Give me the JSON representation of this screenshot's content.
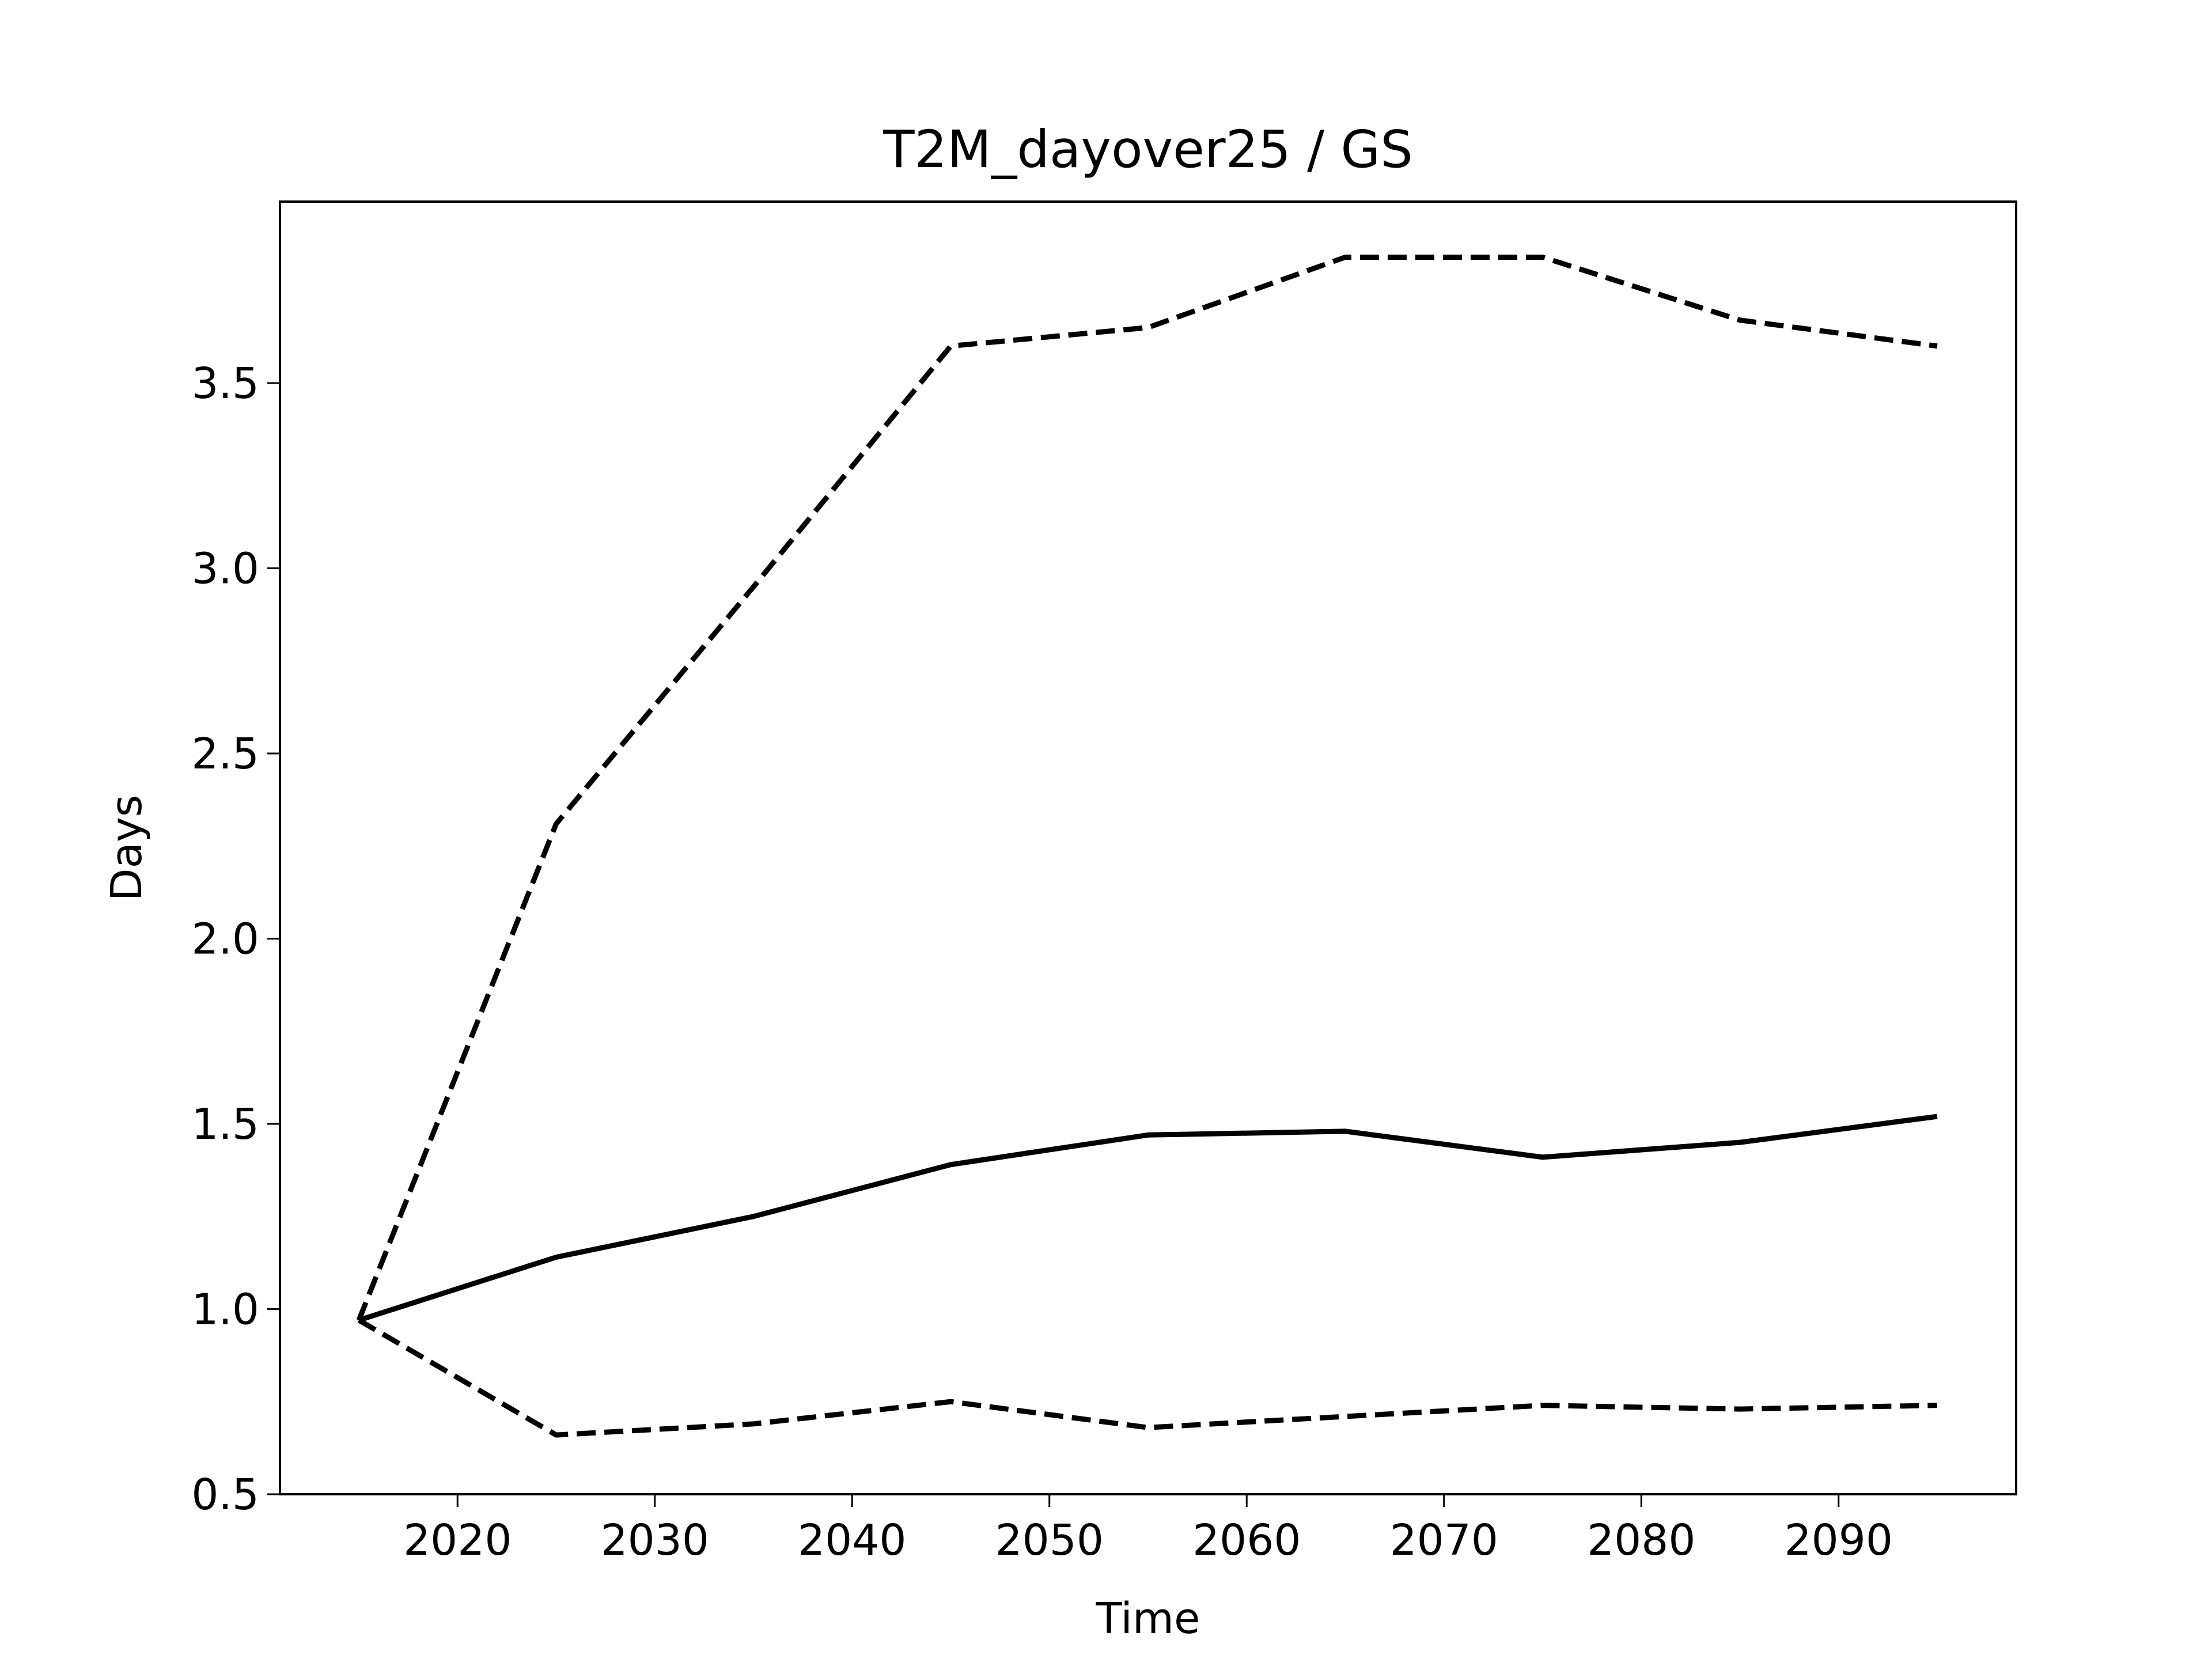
{
  "chart_data": {
    "type": "line",
    "title": "T2M_dayover25 / GS",
    "xlabel": "Time",
    "ylabel": "Days",
    "x": [
      2015,
      2025,
      2035,
      2045,
      2055,
      2065,
      2075,
      2085,
      2095
    ],
    "series": [
      {
        "color": "#000000",
        "linestyle": "solid",
        "values": [
          0.97,
          1.14,
          1.25,
          1.39,
          1.47,
          1.48,
          1.41,
          1.45,
          1.52
        ]
      },
      {
        "color": "#000000",
        "linestyle": "dashed",
        "values": [
          0.97,
          2.31,
          2.95,
          3.6,
          3.65,
          3.84,
          3.84,
          3.67,
          3.6
        ]
      },
      {
        "color": "#000000",
        "linestyle": "dashed",
        "values": [
          0.97,
          0.66,
          0.69,
          0.75,
          0.68,
          0.71,
          0.74,
          0.73,
          0.74
        ]
      }
    ],
    "xlim": [
      2011,
      2099
    ],
    "xticks": [
      2020,
      2030,
      2040,
      2050,
      2060,
      2070,
      2080,
      2090
    ],
    "ylim": [
      0.5,
      3.99
    ],
    "yticks": [
      0.5,
      {
        "value": 1,
        "label": "1.0"
      },
      1.5,
      {
        "value": 2,
        "label": "2.0"
      },
      2.5,
      {
        "value": 3,
        "label": "3.0"
      },
      3.5
    ],
    "grid": false
  }
}
